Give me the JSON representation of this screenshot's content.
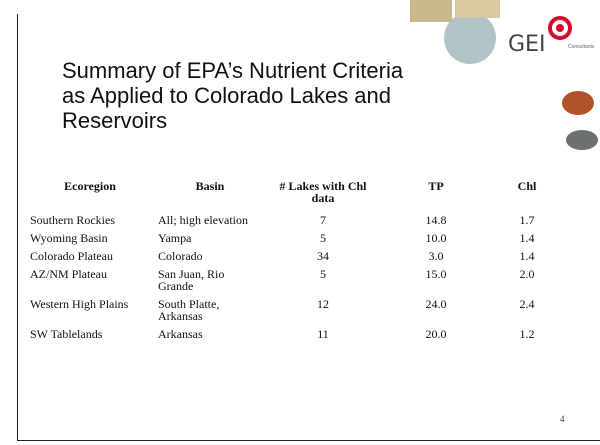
{
  "header": {
    "title": "Summary of EPA’s Nutrient Criteria as Applied to Colorado Lakes and Reservoirs",
    "logo": "GEI",
    "logo_subtitle": "Consultants"
  },
  "table": {
    "columns": [
      "Ecoregion",
      "Basin",
      "# Lakes with Chl data",
      "TP",
      "Chl"
    ],
    "rows": [
      [
        "Southern Rockies",
        "All; high elevation",
        "7",
        "14.8",
        "1.7"
      ],
      [
        "Wyoming Basin",
        "Yampa",
        "5",
        "10.0",
        "1.4"
      ],
      [
        "Colorado Plateau",
        "Colorado",
        "34",
        "3.0",
        "1.4"
      ],
      [
        "AZ/NM Plateau",
        "San Juan, Rio Grande",
        "5",
        "15.0",
        "2.0"
      ],
      [
        "Western High Plains",
        "South Platte, Arkansas",
        "12",
        "24.0",
        "2.4"
      ],
      [
        "SW Tablelands",
        "Arkansas",
        "11",
        "20.0",
        "1.2"
      ]
    ]
  },
  "footer": {
    "page_number": "4"
  }
}
